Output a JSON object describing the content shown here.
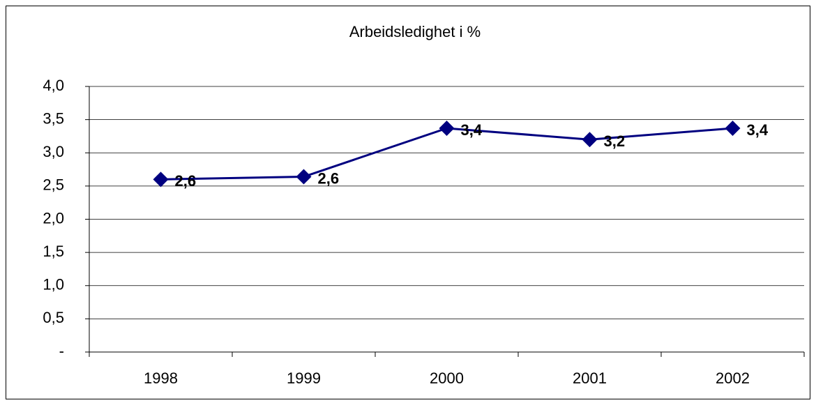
{
  "chart_data": {
    "type": "line",
    "title": "Arbeidsledighet i %",
    "categories": [
      "1998",
      "1999",
      "2000",
      "2001",
      "2002"
    ],
    "series": [
      {
        "name": "Arbeidsledighet",
        "color": "#000080",
        "values": [
          2.6,
          2.64,
          3.37,
          3.2,
          3.37
        ],
        "value_labels": [
          "2,6",
          "2,6",
          "3,4",
          "3,2",
          "3,4"
        ]
      }
    ],
    "ylim": [
      0,
      4
    ],
    "yticks": [
      {
        "value": 0,
        "label": "-"
      },
      {
        "value": 0.5,
        "label": "0,5"
      },
      {
        "value": 1,
        "label": "1,0"
      },
      {
        "value": 1.5,
        "label": "1,5"
      },
      {
        "value": 2,
        "label": "2,0"
      },
      {
        "value": 2.5,
        "label": "2,5"
      },
      {
        "value": 3,
        "label": "3,0"
      },
      {
        "value": 3.5,
        "label": "3,5"
      },
      {
        "value": 4,
        "label": "4,0"
      }
    ],
    "grid": true
  }
}
